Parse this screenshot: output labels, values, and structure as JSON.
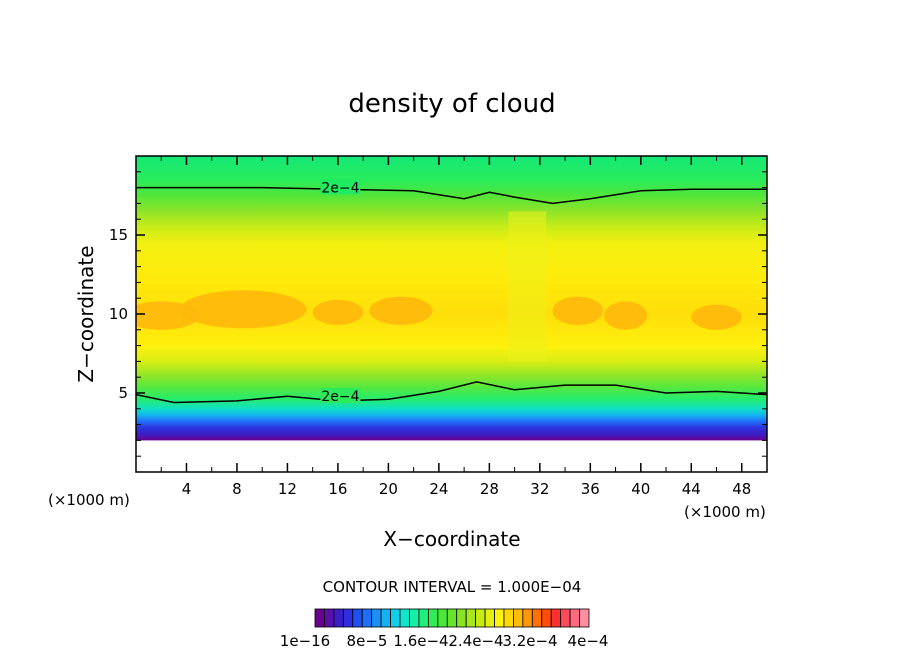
{
  "chart_data": {
    "type": "heatmap",
    "title": "density of cloud",
    "xlabel": "X−coordinate",
    "ylabel": "Z−coordinate",
    "x_unit": "(×1000 m)",
    "y_unit": "(×1000 m)",
    "xlim": [
      0,
      50
    ],
    "ylim": [
      0,
      20
    ],
    "x_ticks": [
      4,
      8,
      12,
      16,
      20,
      24,
      28,
      32,
      36,
      40,
      44,
      48
    ],
    "y_ticks": [
      5,
      10,
      15
    ],
    "contour_interval_text": "CONTOUR INTERVAL = 1.000E−04",
    "contour_level": "2e−4",
    "contour_labels": [
      "2e−4",
      "2e−4"
    ],
    "colorbar": {
      "labels": [
        "1e−16",
        "8e−5",
        "1.6e−4",
        "2.4e−4",
        "3.2e−4",
        "4e−4"
      ],
      "colors": [
        "#6a0090",
        "#5a10a8",
        "#3b1ec6",
        "#2b2fe0",
        "#2150f0",
        "#1e6ef8",
        "#1a90f4",
        "#14b2f0",
        "#0fd0e8",
        "#10e6cc",
        "#14f0a4",
        "#1ef07c",
        "#30ec56",
        "#48e83a",
        "#66e42c",
        "#86e424",
        "#a6e81c",
        "#c6ec14",
        "#e4f010",
        "#fff20c",
        "#ffd80c",
        "#ffbc0a",
        "#ff9808",
        "#ff7004",
        "#ff4c0a",
        "#ff3030",
        "#ff4a5c",
        "#ff6a80",
        "#ff8fa0"
      ]
    },
    "domain_z_range_kft": [
      2,
      20
    ],
    "upper_contour_z": [
      [
        0,
        18.0
      ],
      [
        10,
        18.0
      ],
      [
        16,
        17.9
      ],
      [
        22,
        17.8
      ],
      [
        26,
        17.3
      ],
      [
        28,
        17.7
      ],
      [
        30,
        17.4
      ],
      [
        33,
        17.0
      ],
      [
        36,
        17.3
      ],
      [
        40,
        17.8
      ],
      [
        44,
        17.9
      ],
      [
        50,
        17.9
      ]
    ],
    "lower_contour_z": [
      [
        0,
        4.9
      ],
      [
        3,
        4.4
      ],
      [
        8,
        4.5
      ],
      [
        12,
        4.8
      ],
      [
        16,
        4.5
      ],
      [
        20,
        4.6
      ],
      [
        24,
        5.1
      ],
      [
        27,
        5.7
      ],
      [
        30,
        5.2
      ],
      [
        34,
        5.5
      ],
      [
        38,
        5.5
      ],
      [
        42,
        5.0
      ],
      [
        46,
        5.1
      ],
      [
        50,
        4.9
      ]
    ]
  }
}
